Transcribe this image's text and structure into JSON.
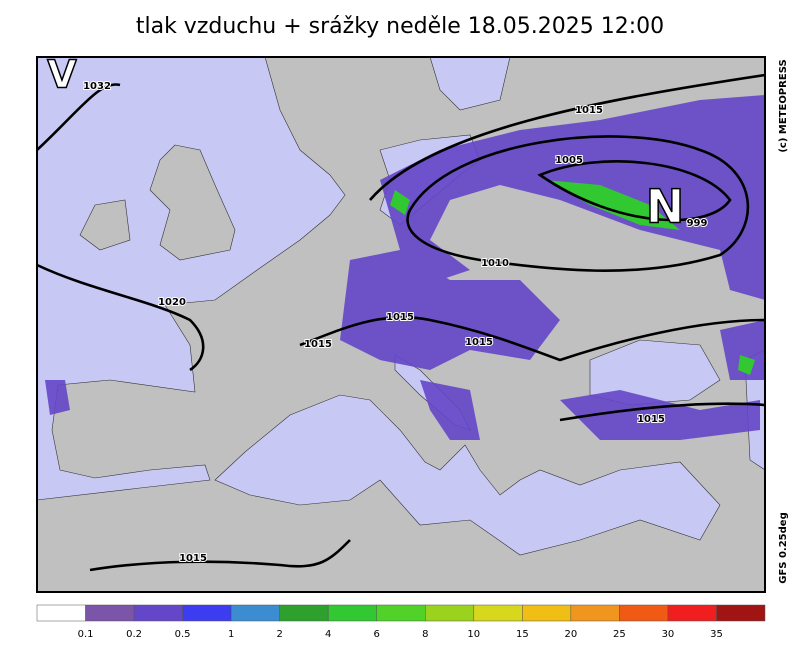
{
  "title": "tlak vzduchu + srážky  neděle 18.05.2025 12:00",
  "pressure_centers": [
    {
      "symbol": "V",
      "value": 1032
    },
    {
      "symbol": "N",
      "value": 999
    }
  ],
  "isobar_labels": [
    1015,
    1005,
    1010,
    1020,
    1015,
    1015,
    1015,
    1015,
    1015
  ],
  "credits": [
    "(c) METEOPRESS",
    "GFS 0.25deg"
  ],
  "legend": {
    "colors": [
      "#ffffff",
      "#7a55a8",
      "#6446c8",
      "#3c3cf0",
      "#3c8cd2",
      "#2ea02e",
      "#32c832",
      "#50d228",
      "#9bd21e",
      "#d7d71e",
      "#f0be14",
      "#f0961e",
      "#f05a14",
      "#f01e1e",
      "#a01414"
    ],
    "labels": [
      0.1,
      0.2,
      0.5,
      1,
      2,
      4,
      6,
      8,
      10,
      15,
      20,
      25,
      30,
      35
    ]
  }
}
